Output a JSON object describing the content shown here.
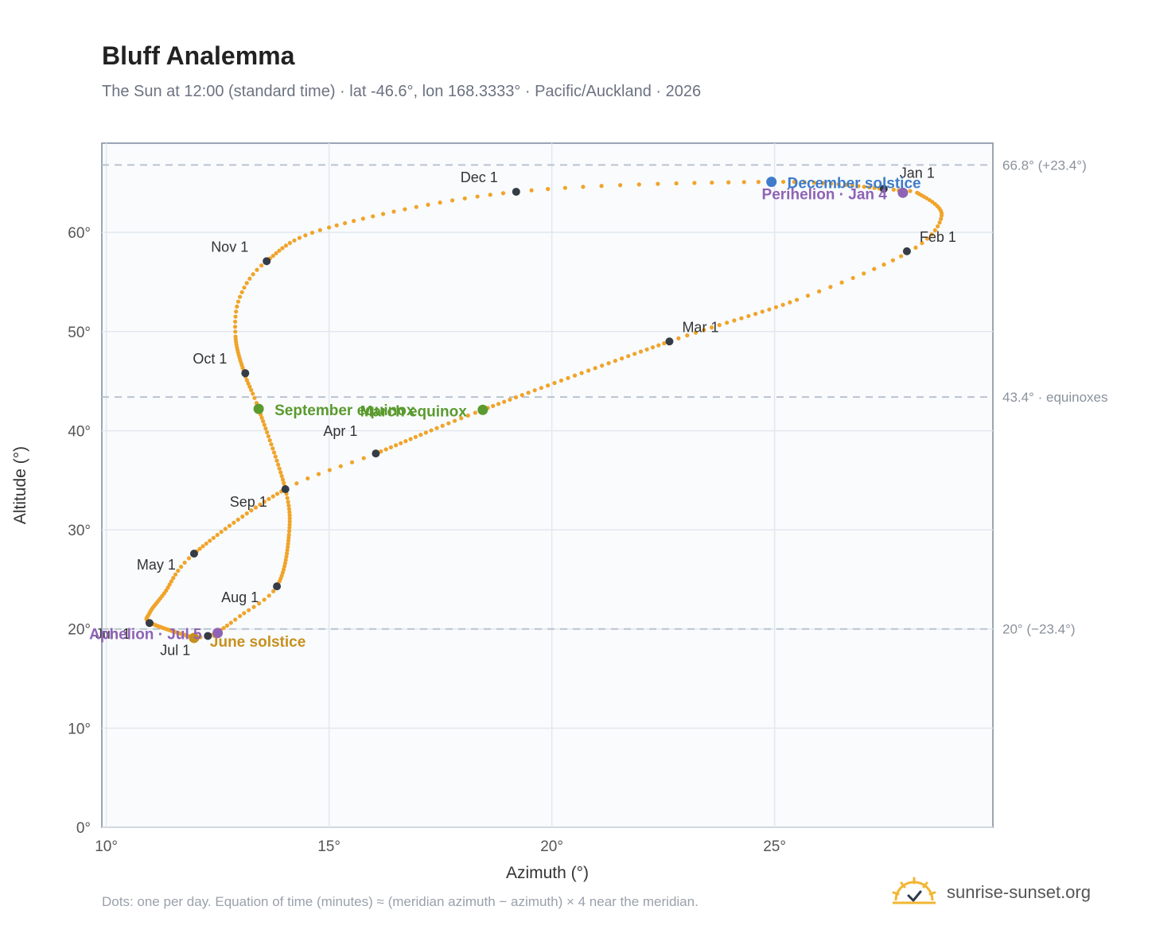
{
  "header": {
    "title": "Bluff Analemma",
    "subtitle": "The Sun at 12:00 (standard time) · lat -46.6°, lon 168.3333° · Pacific/Auckland · 2026"
  },
  "footer": {
    "note": "Dots: one per day. Equation of time (minutes) ≈ (meridian azimuth − azimuth) × 4 near the meridian.",
    "brand": "sunrise-sunset.org"
  },
  "chart_data": {
    "type": "scatter",
    "xlabel": "Azimuth (°)",
    "ylabel": "Altitude (°)",
    "xlim": [
      9.9,
      29.9
    ],
    "ylim": [
      0,
      69
    ],
    "xticks": [
      10,
      15,
      20,
      25
    ],
    "yticks": [
      0,
      10,
      20,
      30,
      40,
      50,
      60
    ],
    "x_tick_labels": [
      "10°",
      "15°",
      "20°",
      "25°"
    ],
    "y_tick_labels": [
      "0°",
      "10°",
      "20°",
      "30°",
      "40°",
      "50°",
      "60°"
    ],
    "grid": true,
    "reference_lines": [
      {
        "y": 66.8,
        "label": "66.8° (+23.4°)"
      },
      {
        "y": 43.4,
        "label": "43.4° · equinoxes"
      },
      {
        "y": 20.0,
        "label": "20° (−23.4°)"
      }
    ],
    "series": [
      {
        "color": "#f0a42a",
        "points_per_day": true,
        "anchors": [
          [
            11.97,
            19.1,
            1
          ],
          [
            11.0,
            20.6,
            31
          ],
          [
            10.97,
            21.6,
            38
          ],
          [
            11.3,
            23.6,
            49
          ],
          [
            11.97,
            27.6,
            60
          ],
          [
            14.02,
            34.1,
            83
          ],
          [
            16.05,
            37.7,
            91
          ],
          [
            18.45,
            42.1,
            110
          ],
          [
            22.64,
            49.0,
            140
          ],
          [
            25.5,
            53.2,
            157
          ],
          [
            28.0,
            58.0,
            168
          ],
          [
            28.75,
            61.7,
            177
          ],
          [
            28.2,
            64.0,
            189
          ],
          [
            27.9,
            64.1,
            191
          ],
          [
            27.45,
            64.4,
            196
          ],
          [
            24.93,
            65.1,
            211
          ],
          [
            19.2,
            64.1,
            226
          ],
          [
            15.0,
            60.5,
            243
          ],
          [
            13.6,
            57.1,
            256
          ],
          [
            13.0,
            53.5,
            264
          ],
          [
            12.9,
            49.5,
            272
          ],
          [
            13.1,
            45.8,
            286
          ],
          [
            13.42,
            42.2,
            295
          ],
          [
            14.02,
            34.1,
            317
          ],
          [
            14.1,
            29.5,
            330
          ],
          [
            13.83,
            24.3,
            347
          ],
          [
            13.0,
            21.3,
            355
          ],
          [
            12.5,
            19.7,
            361
          ],
          [
            12.28,
            19.3,
            364
          ],
          [
            11.97,
            19.1,
            366
          ]
        ]
      }
    ],
    "month_markers": [
      {
        "label": "Jan 1",
        "x": 27.45,
        "y": 64.4
      },
      {
        "label": "Feb 1",
        "x": 27.97,
        "y": 58.1
      },
      {
        "label": "Mar 1",
        "x": 22.64,
        "y": 49.0
      },
      {
        "label": "Apr 1",
        "x": 16.05,
        "y": 37.7
      },
      {
        "label": "May 1",
        "x": 11.97,
        "y": 27.6
      },
      {
        "label": "Jun 1",
        "x": 10.97,
        "y": 20.6
      },
      {
        "label": "Jul 1",
        "x": 12.28,
        "y": 19.3
      },
      {
        "label": "Aug 1",
        "x": 13.83,
        "y": 24.3
      },
      {
        "label": "Sep 1",
        "x": 14.02,
        "y": 34.1
      },
      {
        "label": "Oct 1",
        "x": 13.12,
        "y": 45.8
      },
      {
        "label": "Nov 1",
        "x": 13.6,
        "y": 57.1
      },
      {
        "label": "Dec 1",
        "x": 19.2,
        "y": 64.1
      }
    ],
    "events": [
      {
        "label": "December solstice",
        "x": 24.93,
        "y": 65.1,
        "color": "#3f7cc9"
      },
      {
        "label": "Perihelion · Jan 4",
        "x": 27.88,
        "y": 64.0,
        "color": "#8e63b5"
      },
      {
        "label": "September equinox",
        "x": 13.42,
        "y": 42.2,
        "color": "#5a9a2e"
      },
      {
        "label": "March equinox",
        "x": 18.45,
        "y": 42.1,
        "color": "#5a9a2e"
      },
      {
        "label": "June solstice",
        "x": 11.97,
        "y": 19.1,
        "color": "#c8901e"
      },
      {
        "label": "Aphelion · Jul 5",
        "x": 12.5,
        "y": 19.6,
        "color": "#8e63b5"
      }
    ]
  }
}
